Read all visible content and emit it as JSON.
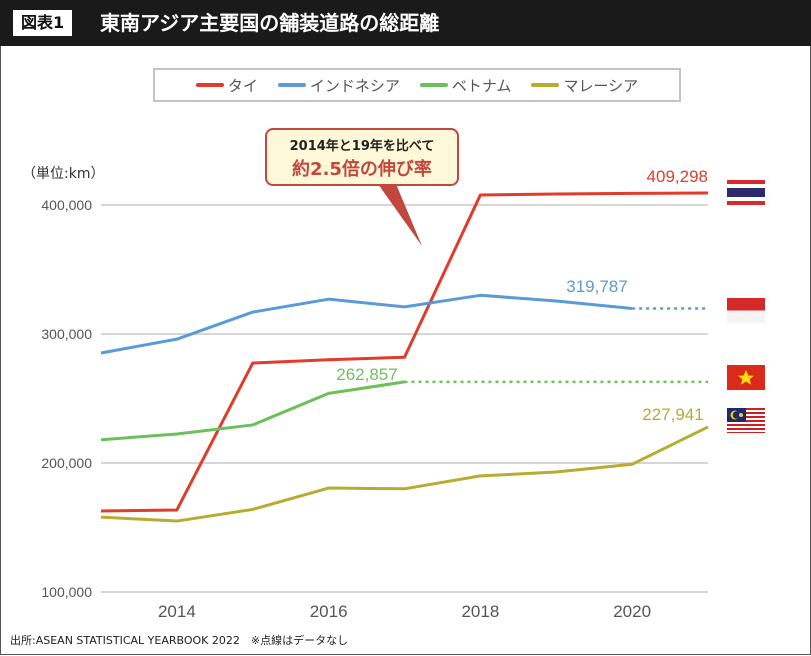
{
  "header": {
    "badge": "図表1",
    "title": "東南アジア主要国の舗装道路の総距離"
  },
  "unit_label": "（単位:km）",
  "callout": {
    "line1": "2014年と19年を比べて",
    "line2": "約2.5倍の伸び率"
  },
  "source": "出所:ASEAN STATISTICAL YEARBOOK 2022　※点線はデータなし",
  "chart_data": {
    "type": "line",
    "x": [
      2013,
      2014,
      2015,
      2016,
      2017,
      2018,
      2019,
      2020,
      2021
    ],
    "xlim": [
      2013,
      2021
    ],
    "ylim": [
      100000,
      400000
    ],
    "x_ticks": [
      2014,
      2016,
      2018,
      2020
    ],
    "y_ticks": [
      100000,
      200000,
      300000,
      400000
    ],
    "y_tick_labels": [
      "100,000",
      "200,000",
      "300,000",
      "400,000"
    ],
    "grid": "horizontal",
    "legend": "top",
    "series": [
      {
        "name": "タイ",
        "color": "#e03c2c",
        "values": [
          162800,
          163600,
          277500,
          280000,
          282000,
          407800,
          408500,
          409000,
          409298
        ],
        "dotted_from": null,
        "label": "409,298",
        "flag": "thailand-flag"
      },
      {
        "name": "インドネシア",
        "color": "#5b9bd5",
        "values": [
          285300,
          296000,
          317000,
          327000,
          321000,
          330000,
          325600,
          319787,
          null
        ],
        "dotted_from": 2020,
        "label": "319,787",
        "flag": "indonesia-flag"
      },
      {
        "name": "ベトナム",
        "color": "#6cbf5a",
        "values": [
          218000,
          222500,
          229500,
          254000,
          262857,
          null,
          null,
          null,
          null
        ],
        "dotted_from": 2017,
        "label": "262,857",
        "flag": "vietnam-flag"
      },
      {
        "name": "マレーシア",
        "color": "#b5ac30",
        "values": [
          158000,
          155000,
          164000,
          180600,
          180000,
          190000,
          193000,
          199000,
          227941
        ],
        "dotted_from": null,
        "label": "227,941",
        "flag": "malaysia-flag"
      }
    ]
  }
}
